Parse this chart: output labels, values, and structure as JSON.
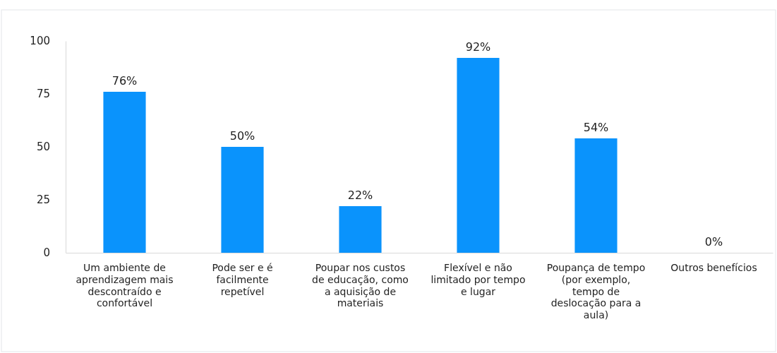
{
  "chart_data": {
    "type": "bar",
    "categories": [
      "Um ambiente de aprendizagem mais descontraído e confortável",
      "Pode ser e é facilmente repetível",
      "Poupar nos custos de educação, como a aquisição de materiais",
      "Flexível e não limitado por tempo e lugar",
      "Poupança de tempo (por exemplo, tempo de deslocação para a aula)",
      "Outros benefícios"
    ],
    "values": [
      76,
      50,
      22,
      92,
      54,
      0
    ],
    "value_labels": [
      "76%",
      "50%",
      "22%",
      "92%",
      "54%",
      "0%"
    ],
    "color": "#0a93fc",
    "ylim": [
      0,
      100
    ],
    "yticks": [
      0,
      25,
      50,
      75,
      100
    ],
    "grid": false
  }
}
